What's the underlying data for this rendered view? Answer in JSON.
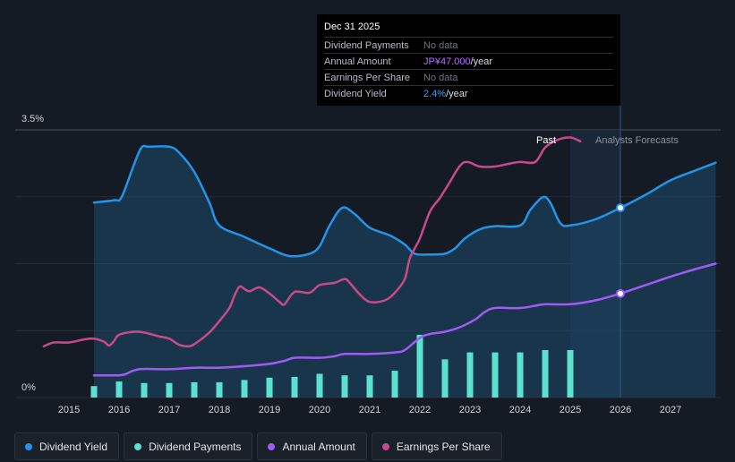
{
  "tooltip": {
    "date": "Dec 31 2025",
    "rows": [
      {
        "label": "Dividend Payments",
        "value": "No data",
        "unit": ""
      },
      {
        "label": "Annual Amount",
        "value": "JP¥47.000",
        "unit": "/year"
      },
      {
        "label": "Earnings Per Share",
        "value": "No data",
        "unit": ""
      },
      {
        "label": "Dividend Yield",
        "value": "2.4%",
        "unit": "/year"
      }
    ]
  },
  "regions": {
    "past": "Past",
    "forecast": "Analysts Forecasts"
  },
  "legend": [
    {
      "label": "Dividend Yield",
      "color": "#2394e8"
    },
    {
      "label": "Dividend Payments",
      "color": "#5ce0d0"
    },
    {
      "label": "Annual Amount",
      "color": "#a05cf0"
    },
    {
      "label": "Earnings Per Share",
      "color": "#c84a8a"
    }
  ],
  "chart_data": {
    "type": "line",
    "title": "",
    "x_range": [
      2014.5,
      2027.9
    ],
    "y_range": [
      0,
      3.5
    ],
    "y_tick_labels": [
      "3.5%",
      "0%"
    ],
    "x_ticks": [
      2015,
      2016,
      2017,
      2018,
      2019,
      2020,
      2021,
      2022,
      2023,
      2024,
      2025,
      2026,
      2027
    ],
    "past_end": 2025.0,
    "highlight": 2026.0,
    "series": [
      {
        "name": "Dividend Yield",
        "color": "#2394e8",
        "filled": true,
        "points": [
          [
            2015.5,
            2.55
          ],
          [
            2015.9,
            2.58
          ],
          [
            2016.05,
            2.62
          ],
          [
            2016.3,
            3.05
          ],
          [
            2016.45,
            3.27
          ],
          [
            2016.6,
            3.28
          ],
          [
            2017.0,
            3.28
          ],
          [
            2017.2,
            3.2
          ],
          [
            2017.5,
            2.95
          ],
          [
            2017.8,
            2.55
          ],
          [
            2018.0,
            2.25
          ],
          [
            2018.5,
            2.1
          ],
          [
            2019.0,
            1.95
          ],
          [
            2019.4,
            1.85
          ],
          [
            2019.8,
            1.88
          ],
          [
            2020.0,
            1.98
          ],
          [
            2020.2,
            2.25
          ],
          [
            2020.45,
            2.48
          ],
          [
            2020.7,
            2.4
          ],
          [
            2021.0,
            2.22
          ],
          [
            2021.4,
            2.12
          ],
          [
            2021.7,
            2.0
          ],
          [
            2021.9,
            1.88
          ],
          [
            2022.2,
            1.87
          ],
          [
            2022.5,
            1.88
          ],
          [
            2022.7,
            1.95
          ],
          [
            2022.9,
            2.08
          ],
          [
            2023.2,
            2.2
          ],
          [
            2023.5,
            2.24
          ],
          [
            2024.0,
            2.25
          ],
          [
            2024.2,
            2.45
          ],
          [
            2024.45,
            2.62
          ],
          [
            2024.6,
            2.55
          ],
          [
            2024.8,
            2.28
          ],
          [
            2025.0,
            2.25
          ],
          [
            2025.5,
            2.33
          ],
          [
            2026.0,
            2.48
          ],
          [
            2026.5,
            2.65
          ],
          [
            2027.0,
            2.84
          ],
          [
            2027.5,
            2.97
          ],
          [
            2027.9,
            3.07
          ]
        ]
      },
      {
        "name": "Annual Amount",
        "color": "#a05cf0",
        "filled": false,
        "points": [
          [
            2015.5,
            0.29
          ],
          [
            2015.9,
            0.29
          ],
          [
            2016.1,
            0.3
          ],
          [
            2016.4,
            0.37
          ],
          [
            2017.0,
            0.37
          ],
          [
            2017.5,
            0.39
          ],
          [
            2018.0,
            0.39
          ],
          [
            2018.5,
            0.41
          ],
          [
            2019.0,
            0.44
          ],
          [
            2019.3,
            0.48
          ],
          [
            2019.5,
            0.52
          ],
          [
            2020.0,
            0.52
          ],
          [
            2020.3,
            0.54
          ],
          [
            2020.5,
            0.57
          ],
          [
            2021.0,
            0.57
          ],
          [
            2021.5,
            0.59
          ],
          [
            2021.7,
            0.62
          ],
          [
            2022.0,
            0.78
          ],
          [
            2022.2,
            0.83
          ],
          [
            2022.5,
            0.86
          ],
          [
            2022.8,
            0.92
          ],
          [
            2023.1,
            1.02
          ],
          [
            2023.3,
            1.12
          ],
          [
            2023.5,
            1.17
          ],
          [
            2024.0,
            1.17
          ],
          [
            2024.3,
            1.2
          ],
          [
            2024.5,
            1.22
          ],
          [
            2025.0,
            1.22
          ],
          [
            2025.5,
            1.27
          ],
          [
            2026.0,
            1.36
          ],
          [
            2026.5,
            1.47
          ],
          [
            2027.0,
            1.58
          ],
          [
            2027.5,
            1.68
          ],
          [
            2027.9,
            1.75
          ]
        ]
      },
      {
        "name": "Earnings Per Share",
        "color": "#c84a8a",
        "filled": false,
        "points": [
          [
            2014.5,
            0.67
          ],
          [
            2014.7,
            0.72
          ],
          [
            2015.0,
            0.72
          ],
          [
            2015.3,
            0.76
          ],
          [
            2015.5,
            0.77
          ],
          [
            2015.7,
            0.73
          ],
          [
            2015.8,
            0.68
          ],
          [
            2015.9,
            0.74
          ],
          [
            2016.0,
            0.82
          ],
          [
            2016.3,
            0.86
          ],
          [
            2016.5,
            0.85
          ],
          [
            2016.8,
            0.8
          ],
          [
            2017.0,
            0.77
          ],
          [
            2017.2,
            0.69
          ],
          [
            2017.4,
            0.67
          ],
          [
            2017.55,
            0.72
          ],
          [
            2017.8,
            0.85
          ],
          [
            2018.0,
            1.0
          ],
          [
            2018.2,
            1.17
          ],
          [
            2018.3,
            1.33
          ],
          [
            2018.4,
            1.45
          ],
          [
            2018.5,
            1.42
          ],
          [
            2018.6,
            1.39
          ],
          [
            2018.8,
            1.44
          ],
          [
            2019.0,
            1.36
          ],
          [
            2019.2,
            1.25
          ],
          [
            2019.3,
            1.22
          ],
          [
            2019.5,
            1.38
          ],
          [
            2019.8,
            1.37
          ],
          [
            2020.0,
            1.47
          ],
          [
            2020.3,
            1.5
          ],
          [
            2020.5,
            1.55
          ],
          [
            2020.6,
            1.5
          ],
          [
            2020.8,
            1.35
          ],
          [
            2021.0,
            1.25
          ],
          [
            2021.3,
            1.27
          ],
          [
            2021.5,
            1.37
          ],
          [
            2021.7,
            1.55
          ],
          [
            2021.8,
            1.82
          ],
          [
            2022.0,
            2.08
          ],
          [
            2022.2,
            2.43
          ],
          [
            2022.4,
            2.61
          ],
          [
            2022.6,
            2.82
          ],
          [
            2022.8,
            3.03
          ],
          [
            2022.95,
            3.08
          ],
          [
            2023.2,
            3.02
          ],
          [
            2023.5,
            3.02
          ],
          [
            2023.8,
            3.06
          ],
          [
            2024.0,
            3.08
          ],
          [
            2024.3,
            3.08
          ],
          [
            2024.5,
            3.27
          ],
          [
            2024.75,
            3.37
          ],
          [
            2025.0,
            3.4
          ],
          [
            2025.2,
            3.35
          ]
        ]
      }
    ],
    "bars": {
      "name": "Dividend Payments",
      "color": "#5ce0d0",
      "points": [
        [
          2015.5,
          0.15
        ],
        [
          2016.0,
          0.21
        ],
        [
          2016.5,
          0.19
        ],
        [
          2017.0,
          0.19
        ],
        [
          2017.5,
          0.2
        ],
        [
          2018.0,
          0.2
        ],
        [
          2018.5,
          0.23
        ],
        [
          2019.0,
          0.26
        ],
        [
          2019.5,
          0.27
        ],
        [
          2020.0,
          0.31
        ],
        [
          2020.5,
          0.29
        ],
        [
          2021.0,
          0.29
        ],
        [
          2021.5,
          0.35
        ],
        [
          2022.0,
          0.82
        ],
        [
          2022.5,
          0.5
        ],
        [
          2023.0,
          0.59
        ],
        [
          2023.5,
          0.59
        ],
        [
          2024.0,
          0.59
        ],
        [
          2024.5,
          0.62
        ],
        [
          2025.0,
          0.62
        ]
      ]
    }
  }
}
